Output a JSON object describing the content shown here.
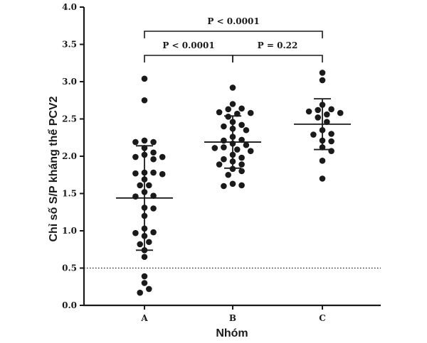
{
  "chart_data": {
    "type": "scatter",
    "subtype": "dot-plot-with-mean-and-sd",
    "xlabel": "Nhóm",
    "ylabel": "Chỉ số S/P kháng thể PCV2",
    "categories": [
      "A",
      "B",
      "C"
    ],
    "ylim": [
      0.0,
      4.0
    ],
    "yticks": [
      0.0,
      0.5,
      1.0,
      1.5,
      2.0,
      2.5,
      3.0,
      3.5,
      4.0
    ],
    "ytick_labels": [
      "0.0",
      "0.5",
      "1.0",
      "1.5",
      "2.0",
      "2.5",
      "3.0",
      "3.5",
      "4.0"
    ],
    "reference_line": {
      "y": 0.5,
      "style": "dotted"
    },
    "groups": [
      {
        "name": "A",
        "mean": 1.44,
        "sd_low": 0.74,
        "sd_high": 2.14,
        "points": [
          3.04,
          2.75,
          2.21,
          2.19,
          2.19,
          2.11,
          2.05,
          2.02,
          1.99,
          1.99,
          1.96,
          1.78,
          1.78,
          1.77,
          1.76,
          1.69,
          1.61,
          1.61,
          1.52,
          1.47,
          1.46,
          1.31,
          1.3,
          1.2,
          1.03,
          0.98,
          0.97,
          0.93,
          0.85,
          0.82,
          0.74,
          0.65,
          0.39,
          0.3,
          0.22,
          0.17
        ]
      },
      {
        "name": "B",
        "mean": 2.19,
        "sd_low": 1.84,
        "sd_high": 2.54,
        "points": [
          2.92,
          2.7,
          2.64,
          2.63,
          2.59,
          2.58,
          2.57,
          2.53,
          2.46,
          2.42,
          2.4,
          2.37,
          2.35,
          2.26,
          2.22,
          2.21,
          2.17,
          2.15,
          2.12,
          2.11,
          2.09,
          2.07,
          2.02,
          1.98,
          1.96,
          1.93,
          1.89,
          1.89,
          1.83,
          1.8,
          1.75,
          1.63,
          1.61,
          1.6
        ]
      },
      {
        "name": "C",
        "mean": 2.43,
        "sd_low": 2.09,
        "sd_high": 2.77,
        "points": [
          3.12,
          3.02,
          2.69,
          2.63,
          2.62,
          2.6,
          2.58,
          2.56,
          2.52,
          2.46,
          2.35,
          2.3,
          2.29,
          2.21,
          2.2,
          2.12,
          2.07,
          1.94,
          1.7
        ]
      }
    ],
    "annotations": [
      {
        "text": "P < 0.0001",
        "from": "A",
        "to": "C"
      },
      {
        "text": "P < 0.0001",
        "from": "A",
        "to": "B"
      },
      {
        "text": "P = 0.22",
        "from": "B",
        "to": "C"
      }
    ]
  }
}
